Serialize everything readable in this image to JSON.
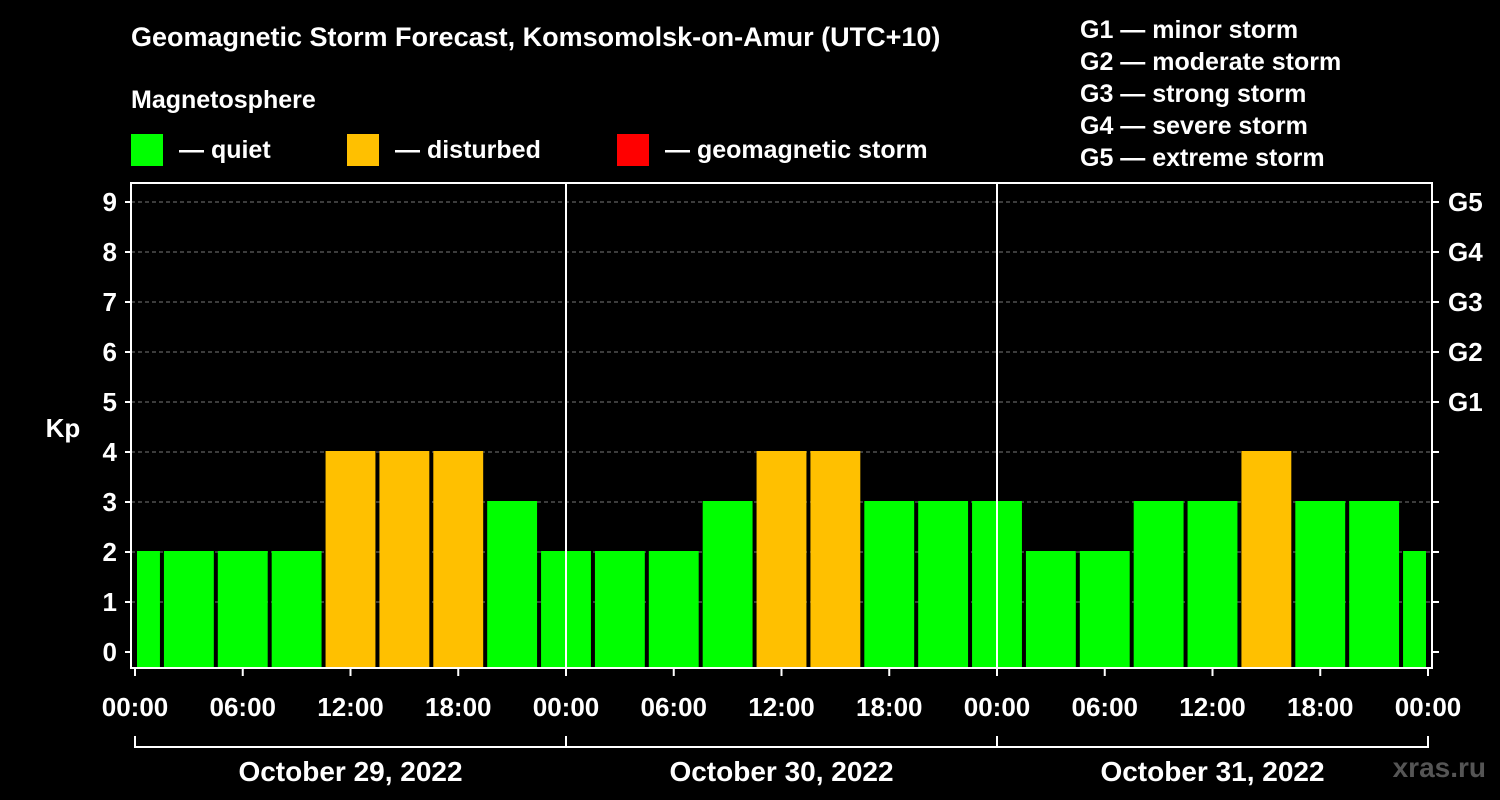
{
  "title": "Geomagnetic Storm Forecast, Komsomolsk-on-Amur (UTC+10)",
  "subtitle": "Magnetosphere",
  "legend": [
    {
      "label": "— quiet",
      "color": "#00ff00"
    },
    {
      "label": "— disturbed",
      "color": "#ffc000"
    },
    {
      "label": "— geomagnetic storm",
      "color": "#ff0000"
    }
  ],
  "storm_scale": [
    "G1 — minor storm",
    "G2 — moderate storm",
    "G3 — strong storm",
    "G4 — severe storm",
    "G5 — extreme storm"
  ],
  "watermark": "xras.ru",
  "chart_data": {
    "type": "bar",
    "ylabel": "Kp",
    "ylim": [
      0,
      9
    ],
    "yticks": [
      "0",
      "1",
      "2",
      "3",
      "4",
      "5",
      "6",
      "7",
      "8",
      "9"
    ],
    "right_ticks": [
      {
        "value": 5,
        "label": "G1"
      },
      {
        "value": 6,
        "label": "G2"
      },
      {
        "value": 7,
        "label": "G3"
      },
      {
        "value": 8,
        "label": "G4"
      },
      {
        "value": 9,
        "label": "G5"
      }
    ],
    "xticks": [
      "00:00",
      "06:00",
      "12:00",
      "18:00",
      "00:00",
      "06:00",
      "12:00",
      "18:00",
      "00:00",
      "06:00",
      "12:00",
      "18:00",
      "00:00"
    ],
    "days": [
      "October 29, 2022",
      "October 30, 2022",
      "October 31, 2022"
    ],
    "colors": {
      "quiet": "#00ff00",
      "disturbed": "#ffc000",
      "storm": "#ff0000"
    },
    "bars": [
      {
        "start_h": 0,
        "end_h": 1.5,
        "kp": 2
      },
      {
        "start_h": 1.5,
        "end_h": 4.5,
        "kp": 2
      },
      {
        "start_h": 4.5,
        "end_h": 7.5,
        "kp": 2
      },
      {
        "start_h": 7.5,
        "end_h": 10.5,
        "kp": 2
      },
      {
        "start_h": 10.5,
        "end_h": 13.5,
        "kp": 4
      },
      {
        "start_h": 13.5,
        "end_h": 16.5,
        "kp": 4
      },
      {
        "start_h": 16.5,
        "end_h": 19.5,
        "kp": 4
      },
      {
        "start_h": 19.5,
        "end_h": 22.5,
        "kp": 3
      },
      {
        "start_h": 22.5,
        "end_h": 25.5,
        "kp": 2
      },
      {
        "start_h": 25.5,
        "end_h": 28.5,
        "kp": 2
      },
      {
        "start_h": 28.5,
        "end_h": 31.5,
        "kp": 2
      },
      {
        "start_h": 31.5,
        "end_h": 34.5,
        "kp": 3
      },
      {
        "start_h": 34.5,
        "end_h": 37.5,
        "kp": 4
      },
      {
        "start_h": 37.5,
        "end_h": 40.5,
        "kp": 4
      },
      {
        "start_h": 40.5,
        "end_h": 43.5,
        "kp": 3
      },
      {
        "start_h": 43.5,
        "end_h": 46.5,
        "kp": 3
      },
      {
        "start_h": 46.5,
        "end_h": 49.5,
        "kp": 3
      },
      {
        "start_h": 49.5,
        "end_h": 52.5,
        "kp": 2
      },
      {
        "start_h": 52.5,
        "end_h": 55.5,
        "kp": 2
      },
      {
        "start_h": 55.5,
        "end_h": 58.5,
        "kp": 3
      },
      {
        "start_h": 58.5,
        "end_h": 61.5,
        "kp": 3
      },
      {
        "start_h": 61.5,
        "end_h": 64.5,
        "kp": 4
      },
      {
        "start_h": 64.5,
        "end_h": 67.5,
        "kp": 3
      },
      {
        "start_h": 67.5,
        "end_h": 70.5,
        "kp": 3
      },
      {
        "start_h": 70.5,
        "end_h": 72,
        "kp": 2
      }
    ]
  }
}
